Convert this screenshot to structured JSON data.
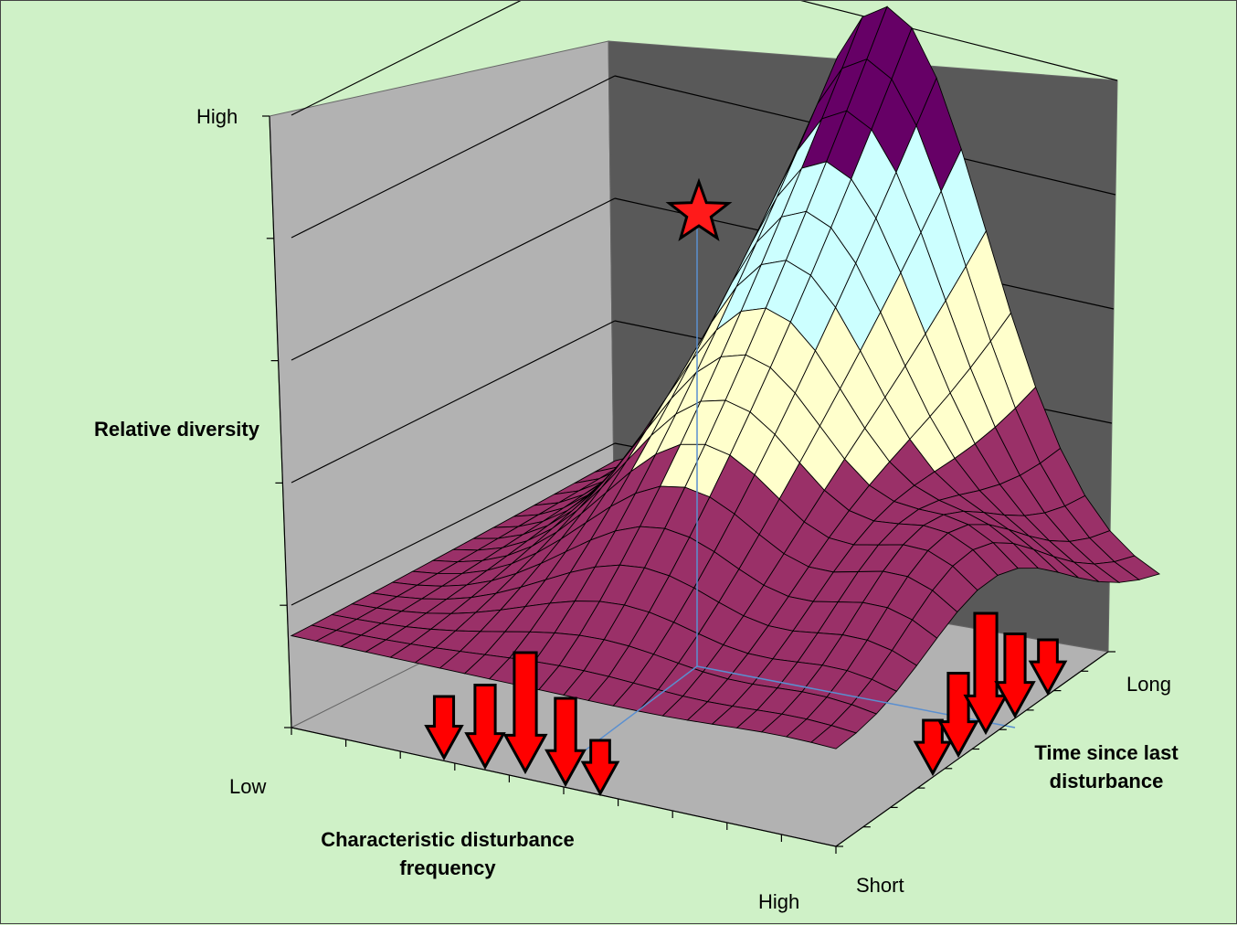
{
  "chart_data": {
    "type": "surface",
    "title": "",
    "zlabel": "Relative diversity",
    "xlabel": [
      "Characteristic disturbance",
      "frequency"
    ],
    "ylabel": [
      "Time since last",
      "disturbance"
    ],
    "x_axis_ticks": {
      "low": "Low",
      "high": "High"
    },
    "y_axis_ticks": {
      "short": "Short",
      "long": "Long"
    },
    "z_axis_ticks": {
      "high": "High"
    },
    "surface_description_bands": [
      "purple (low)",
      "light yellow",
      "light cyan",
      "dark purple (high)"
    ],
    "peak": {
      "x": "intermediate",
      "y": "long",
      "z": "high"
    },
    "bands": [
      {
        "name": "low",
        "color": "#9a3068"
      },
      {
        "name": "mid-low",
        "color": "#ffffcc"
      },
      {
        "name": "mid-high",
        "color": "#ccffff"
      },
      {
        "name": "high",
        "color": "#660066"
      }
    ],
    "grid": true,
    "arrows_x": [
      0.3,
      0.55,
      1.0,
      0.6,
      0.2
    ],
    "arrows_y": [
      0.2,
      0.55,
      1.0,
      0.55,
      0.2
    ],
    "marker": "star"
  },
  "colors": {
    "background": "#cff1c7",
    "left_wall": "#b2b2b2",
    "back_wall": "#595959",
    "floor": "#b2b2b2",
    "arrow": "#ff0000",
    "star": "#ff1a1a"
  }
}
